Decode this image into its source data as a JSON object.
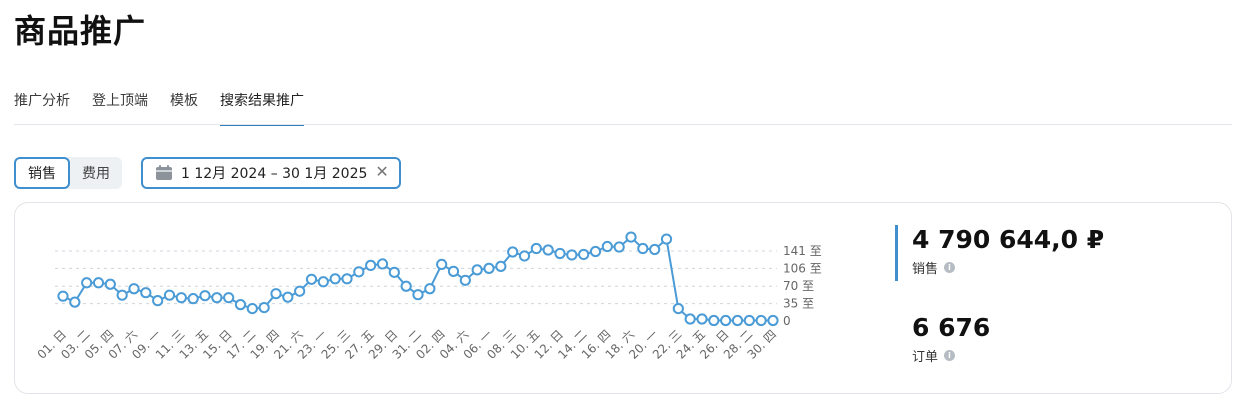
{
  "page": {
    "title": "商品推广"
  },
  "tabs": [
    {
      "label": "推广分析",
      "active": false
    },
    {
      "label": "登上顶端",
      "active": false
    },
    {
      "label": "模板",
      "active": false
    },
    {
      "label": "搜索结果推广",
      "active": true
    }
  ],
  "segment": {
    "options": [
      "销售",
      "费用"
    ],
    "selected": "销售"
  },
  "date_filter": {
    "value": "1 12月 2024 – 30 1月 2025",
    "icon": "calendar-icon",
    "clear_icon": "close-icon"
  },
  "metrics": [
    {
      "value": "4 790 644,0 ₽",
      "label": "销售",
      "accent": "#3f8fcf"
    },
    {
      "value": "6 676",
      "label": "订单"
    }
  ],
  "colors": {
    "accent": "#3f8fcf",
    "line": "#4a9bd6",
    "grid": "#cfd5dc"
  },
  "chart_data": {
    "type": "line",
    "y_ticks": [
      0,
      35,
      70,
      106,
      141
    ],
    "y_tick_labels": [
      "0",
      "35 至",
      "70 至",
      "106 至",
      "141 至"
    ],
    "ylim": [
      0,
      141
    ],
    "x_labels": [
      "01. 日",
      "03. 二",
      "05. 四",
      "07. 六",
      "09. 一",
      "11. 三",
      "13. 五",
      "15. 日",
      "17. 二",
      "19. 四",
      "21. 六",
      "23. 一",
      "25. 三",
      "27. 五",
      "29. 日",
      "31. 二",
      "02. 四",
      "04. 六",
      "06. 一",
      "08. 三",
      "10. 五",
      "12. 日",
      "14. 二",
      "16. 四",
      "18. 六",
      "20. 一",
      "22. 三",
      "24. 五",
      "26. 日",
      "28. 二",
      "30. 四"
    ],
    "series": [
      {
        "values": [
          50,
          38,
          77,
          77,
          74,
          52,
          65,
          57,
          41,
          52,
          47,
          45,
          51,
          47,
          47,
          33,
          25,
          27,
          55,
          48,
          60,
          84,
          79,
          85,
          85,
          99,
          112,
          115,
          98,
          70,
          53,
          65,
          114,
          100,
          82,
          103,
          106,
          110,
          139,
          131,
          146,
          143,
          136,
          133,
          134,
          140,
          150,
          149,
          169,
          146,
          144,
          165,
          25,
          4,
          4,
          1,
          1,
          1,
          1,
          1,
          1
        ]
      }
    ]
  }
}
